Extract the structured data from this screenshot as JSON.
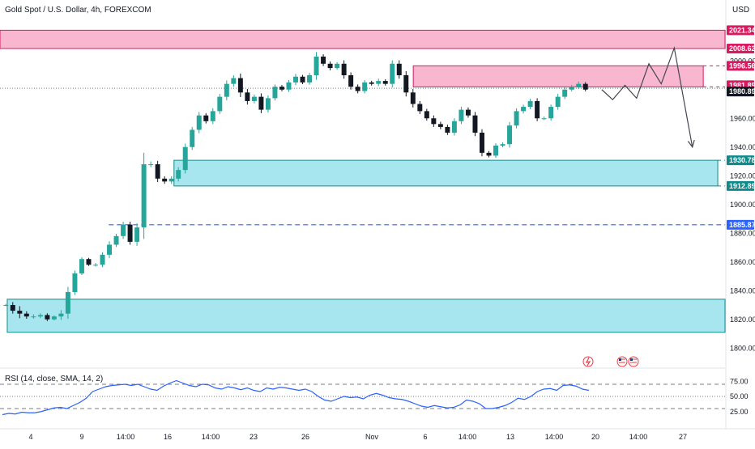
{
  "header": {
    "title": "Gold Spot / U.S. Dollar, 4h, FOREXCOM",
    "currency": "USD",
    "rsi_label": "RSI (14, close, SMA, 14, 2)"
  },
  "colors": {
    "up": "#26a69a",
    "down": "#131722",
    "supply_fill": "#f8b6cf",
    "supply_border": "#d81b60",
    "demand_fill": "#a8e6ef",
    "demand_border": "#0f8a8a",
    "blue_dash": "#2962ff",
    "rsi_line": "#2962ff",
    "projection": "#434651"
  },
  "chart_data": {
    "type": "candlestick",
    "title": "Gold Spot / U.S. Dollar, 4h, FOREXCOM",
    "y_unit": "USD",
    "ylim": [
      1790,
      2030
    ],
    "y_ticks": [
      1800,
      1820,
      1840,
      1860,
      1880,
      1900,
      1920,
      1940,
      1960,
      1980,
      2000
    ],
    "y_tick_labels": [
      "1800.00",
      "1820.00",
      "1840.00",
      "1860.00",
      "1880.00",
      "1900.00",
      "1920.00",
      "1940.00",
      "1960.00",
      "1980.00",
      "2000.00"
    ],
    "x_tick_labels": [
      "4",
      "9",
      "14:00",
      "16",
      "14:00",
      "23",
      "26",
      "Nov",
      "6",
      "14:00",
      "13",
      "14:00",
      "20",
      "14:00",
      "27"
    ],
    "price_path": [
      [
        1830,
        2
      ],
      [
        1826,
        5
      ],
      [
        1824,
        8
      ],
      [
        1822,
        4
      ],
      [
        1822,
        4
      ],
      [
        1823,
        3
      ],
      [
        1820,
        3
      ],
      [
        1822,
        2
      ],
      [
        1824,
        6
      ],
      [
        1839,
        9
      ],
      [
        1852,
        5
      ],
      [
        1862,
        3
      ],
      [
        1858,
        2
      ],
      [
        1858,
        3
      ],
      [
        1865,
        4
      ],
      [
        1872,
        6
      ],
      [
        1878,
        4
      ],
      [
        1886,
        5
      ],
      [
        1874,
        5
      ],
      [
        1884,
        7
      ],
      [
        1928,
        20
      ],
      [
        1928,
        5
      ],
      [
        1918,
        6
      ],
      [
        1916,
        4
      ],
      [
        1918,
        4
      ],
      [
        1924,
        5
      ],
      [
        1940,
        6
      ],
      [
        1952,
        5
      ],
      [
        1962,
        6
      ],
      [
        1958,
        4
      ],
      [
        1965,
        5
      ],
      [
        1975,
        5
      ],
      [
        1984,
        6
      ],
      [
        1988,
        5
      ],
      [
        1978,
        8
      ],
      [
        1972,
        6
      ],
      [
        1975,
        4
      ],
      [
        1966,
        6
      ],
      [
        1974,
        5
      ],
      [
        1982,
        4
      ],
      [
        1980,
        3
      ],
      [
        1985,
        4
      ],
      [
        1989,
        5
      ],
      [
        1985,
        3
      ],
      [
        1990,
        4
      ],
      [
        2003,
        8
      ],
      [
        1998,
        4
      ],
      [
        1995,
        4
      ],
      [
        1998,
        3
      ],
      [
        1990,
        6
      ],
      [
        1982,
        5
      ],
      [
        1979,
        4
      ],
      [
        1985,
        4
      ],
      [
        1984,
        3
      ],
      [
        1986,
        4
      ],
      [
        1984,
        3
      ],
      [
        1998,
        6
      ],
      [
        1990,
        6
      ],
      [
        1978,
        7
      ],
      [
        1970,
        6
      ],
      [
        1965,
        5
      ],
      [
        1960,
        4
      ],
      [
        1956,
        5
      ],
      [
        1954,
        4
      ],
      [
        1950,
        4
      ],
      [
        1958,
        5
      ],
      [
        1966,
        5
      ],
      [
        1962,
        4
      ],
      [
        1950,
        6
      ],
      [
        1936,
        6
      ],
      [
        1934,
        3
      ],
      [
        1941,
        4
      ],
      [
        1942,
        3
      ],
      [
        1955,
        6
      ],
      [
        1965,
        5
      ],
      [
        1968,
        4
      ],
      [
        1972,
        4
      ],
      [
        1960,
        5
      ],
      [
        1960,
        3
      ],
      [
        1968,
        4
      ],
      [
        1975,
        5
      ],
      [
        1980,
        4
      ],
      [
        1982,
        3
      ],
      [
        1984,
        4
      ],
      [
        1980,
        3
      ]
    ],
    "zones": [
      {
        "kind": "supply",
        "top": 2021.34,
        "bottom": 2008.62,
        "from": 0.0,
        "to": 1.0
      },
      {
        "kind": "supply",
        "top": 1996.56,
        "bottom": 1981.89,
        "from": 0.57,
        "to": 0.97
      },
      {
        "kind": "demand",
        "top": 1930.78,
        "bottom": 1912.89,
        "from": 0.24,
        "to": 0.99
      },
      {
        "kind": "demand",
        "top": 1834.0,
        "bottom": 1811.0,
        "from": 0.01,
        "to": 1.0
      }
    ],
    "levels": [
      {
        "value": 1885.87,
        "style": "dashed",
        "from": 0.15
      },
      {
        "value": 1980.89,
        "style": "dotted",
        "from": 0.0
      }
    ],
    "price_tags": [
      {
        "label": "2021.34",
        "value": 2021.34,
        "kind": "supply"
      },
      {
        "label": "2008.62",
        "value": 2008.62,
        "kind": "supply"
      },
      {
        "label": "1996.56",
        "value": 1996.56,
        "kind": "supply"
      },
      {
        "label": "1981.89",
        "value": 1981.89,
        "kind": "supply"
      },
      {
        "label": "1980.89",
        "value": 1980.89,
        "kind": "current"
      },
      {
        "label": "1930.78",
        "value": 1930.78,
        "kind": "demand"
      },
      {
        "label": "1912.89",
        "value": 1912.89,
        "kind": "demand"
      },
      {
        "label": "1885.87",
        "value": 1885.87,
        "kind": "blue"
      }
    ],
    "projection": [
      [
        0.83,
        1980
      ],
      [
        0.845,
        1973
      ],
      [
        0.862,
        1983
      ],
      [
        0.878,
        1974
      ],
      [
        0.895,
        1998
      ],
      [
        0.912,
        1984
      ],
      [
        0.93,
        2009
      ],
      [
        0.955,
        1940
      ]
    ],
    "event_icons": [
      "lightning-icon",
      "us-flag-icon",
      "us-flag-icon"
    ],
    "rsi": {
      "ylim": [
        10,
        90
      ],
      "levels": [
        70,
        50,
        30
      ],
      "tick_labels": [
        "75.00",
        "50.00",
        "25.00"
      ],
      "tick_values": [
        75,
        50,
        25
      ],
      "series": [
        20,
        22,
        21,
        24,
        23,
        23,
        25,
        28,
        31,
        32,
        30,
        35,
        40,
        47,
        58,
        62,
        66,
        68,
        69,
        70,
        68,
        70,
        66,
        62,
        60,
        67,
        72,
        76,
        72,
        68,
        66,
        70,
        69,
        64,
        62,
        66,
        64,
        61,
        64,
        60,
        58,
        64,
        62,
        65,
        64,
        62,
        60,
        62,
        58,
        50,
        44,
        42,
        46,
        50,
        48,
        49,
        46,
        52,
        55,
        52,
        48,
        46,
        45,
        42,
        38,
        34,
        32,
        35,
        33,
        31,
        32,
        36,
        44,
        42,
        38,
        30,
        30,
        32,
        35,
        40,
        47,
        45,
        50,
        58,
        62,
        63,
        60,
        68,
        69,
        67,
        62,
        60
      ]
    }
  }
}
